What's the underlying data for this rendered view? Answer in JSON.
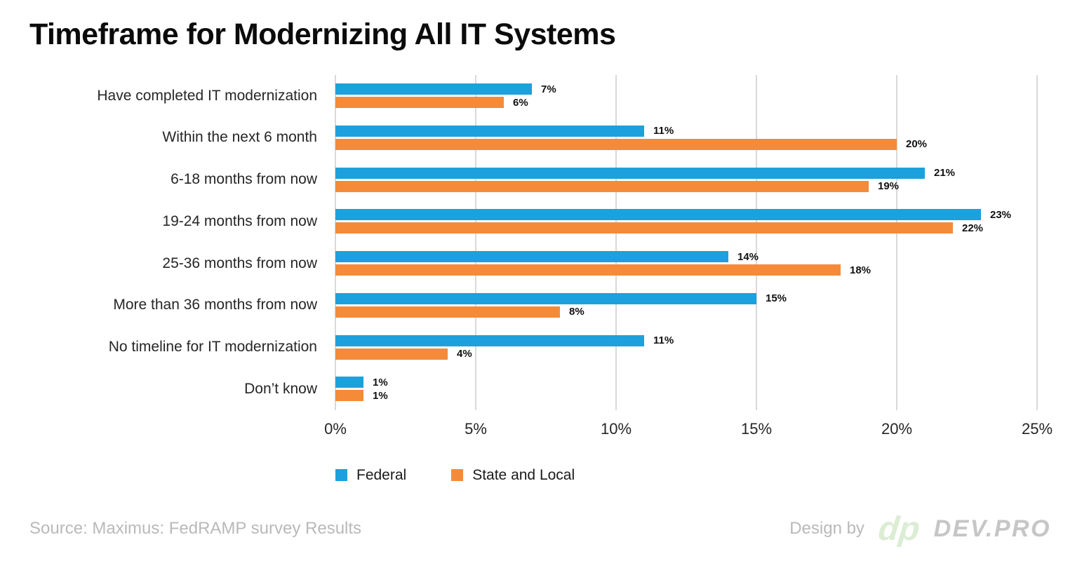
{
  "title": "Timeframe for Modernizing All IT Systems",
  "chart_data": {
    "type": "bar",
    "orientation": "horizontal",
    "title": "Timeframe for Modernizing All IT Systems",
    "categories": [
      "Have completed IT modernization",
      "Within the next 6 month",
      "6-18 months from now",
      "19-24 months from now",
      "25-36 months from now",
      "More than 36 months from now",
      "No timeline for IT modernization",
      "Don’t know"
    ],
    "series": [
      {
        "name": "Federal",
        "color": "#1CA1DC",
        "values": [
          7,
          11,
          21,
          23,
          14,
          15,
          11,
          1
        ]
      },
      {
        "name": "State and Local",
        "color": "#F58B39",
        "values": [
          6,
          20,
          19,
          22,
          18,
          8,
          4,
          1
        ]
      }
    ],
    "value_suffix": "%",
    "xlim": [
      0,
      25
    ],
    "x_ticks": [
      "0%",
      "5%",
      "10%",
      "15%",
      "20%",
      "25%"
    ],
    "grid": "vertical-only",
    "gridline_color": "#D9D9D9",
    "legend_position": "bottom",
    "data_labels": "outside-end, bold"
  },
  "footer": {
    "source": "Source: Maximus: FedRAMP survey Results",
    "design_by": "Design by",
    "logo_text": "dp",
    "brand": "DEV.PRO"
  },
  "colors": {
    "federal": "#1CA1DC",
    "state_and_local": "#F58B39",
    "gridline": "#D9D9D9",
    "muted_text": "#B9B9B9",
    "brand_text": "#C6C6C6",
    "logo_green": "#DBEDD4"
  }
}
